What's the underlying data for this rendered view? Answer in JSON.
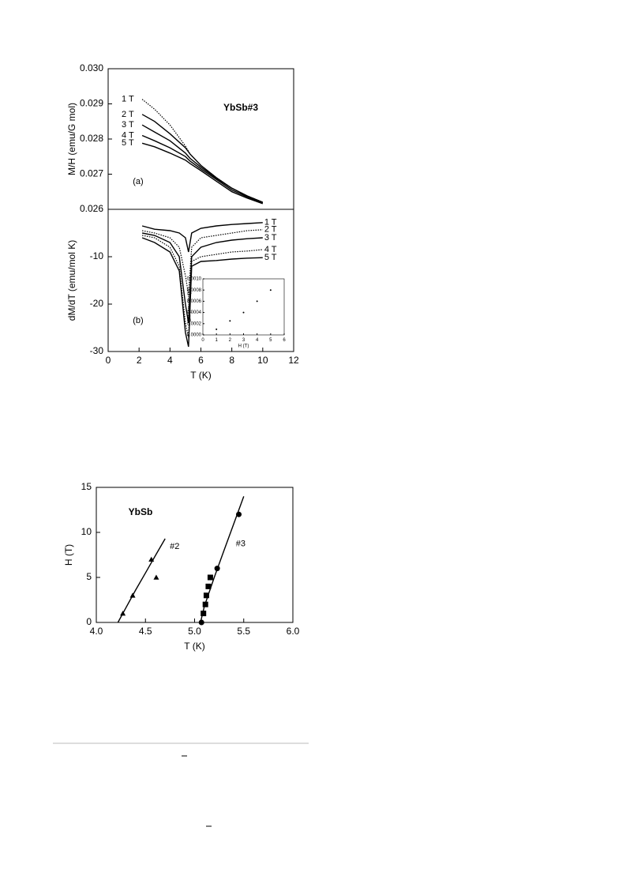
{
  "chart_data": [
    {
      "type": "line",
      "annotation": "YbSb#3",
      "panel_label": "(a)",
      "y_label": "M/H (emu/G mol)",
      "xlim": [
        0,
        12
      ],
      "ylim": [
        0.026,
        0.03
      ],
      "yticks": [
        0.026,
        0.027,
        0.028,
        0.029,
        {
          "value": 0.03,
          "label": "0.030"
        }
      ],
      "series": [
        {
          "name": "1 T",
          "color": "#000",
          "style": "dotted",
          "x": [
            2.2,
            3,
            4,
            5,
            5.3,
            6,
            7,
            8,
            9,
            10
          ],
          "values": [
            0.02913,
            0.02885,
            0.0284,
            0.0278,
            0.02757,
            0.02725,
            0.0269,
            0.0266,
            0.02638,
            0.0262
          ]
        },
        {
          "name": "2 T",
          "color": "#000",
          "style": "solid",
          "x": [
            2.2,
            3,
            4,
            5,
            5.3,
            6,
            7,
            8,
            9,
            10
          ],
          "values": [
            0.0287,
            0.0285,
            0.02815,
            0.02775,
            0.02757,
            0.02725,
            0.0269,
            0.0266,
            0.02638,
            0.0262
          ]
        },
        {
          "name": "3 T",
          "color": "#000",
          "style": "solid",
          "x": [
            2.2,
            3,
            4,
            5,
            5.3,
            6,
            7,
            8,
            9,
            10
          ],
          "values": [
            0.0284,
            0.0282,
            0.02795,
            0.0276,
            0.02745,
            0.0272,
            0.02688,
            0.0266,
            0.02638,
            0.0262
          ]
        },
        {
          "name": "4 T",
          "color": "#000",
          "style": "solid",
          "x": [
            2.2,
            3,
            4,
            5,
            5.3,
            6,
            7,
            8,
            9,
            10
          ],
          "values": [
            0.0281,
            0.02795,
            0.02775,
            0.0275,
            0.02737,
            0.02715,
            0.02685,
            0.02655,
            0.02635,
            0.02618
          ]
        },
        {
          "name": "5 T",
          "color": "#000",
          "style": "solid",
          "x": [
            2.2,
            3,
            4,
            5,
            5.3,
            6,
            7,
            8,
            9,
            10
          ],
          "values": [
            0.02788,
            0.02778,
            0.0276,
            0.0274,
            0.0273,
            0.0271,
            0.0268,
            0.0265,
            0.02632,
            0.02616
          ]
        }
      ]
    },
    {
      "type": "line",
      "panel_label": "(b)",
      "y_label": "dM/dT (emu/mol K)",
      "x_label": "T (K)",
      "xlim": [
        0,
        12
      ],
      "ylim": [
        -30,
        0
      ],
      "xticks": [
        0,
        2,
        4,
        6,
        8,
        10,
        12
      ],
      "yticks": [
        -30,
        -20,
        -10
      ],
      "series": [
        {
          "name": "1 T",
          "color": "#000",
          "style": "solid",
          "x": [
            2.2,
            3,
            4,
            4.6,
            5,
            5.2,
            5.4,
            6,
            7,
            8,
            9,
            10
          ],
          "values": [
            -3.5,
            -4.2,
            -4.5,
            -5,
            -6,
            -9,
            -5,
            -4,
            -3.5,
            -3.2,
            -3,
            -2.8
          ]
        },
        {
          "name": "2 T",
          "color": "#000",
          "style": "dotted",
          "x": [
            2.2,
            3,
            4,
            4.6,
            5,
            5.2,
            5.4,
            6,
            7,
            8,
            9,
            10
          ],
          "values": [
            -4.5,
            -5,
            -6,
            -8,
            -14,
            -18,
            -8,
            -6,
            -5.5,
            -5,
            -4.5,
            -4.3
          ]
        },
        {
          "name": "3 T",
          "color": "#000",
          "style": "solid",
          "x": [
            2.2,
            3,
            4,
            4.6,
            5,
            5.2,
            5.4,
            6,
            7,
            8,
            9,
            10
          ],
          "values": [
            -5,
            -5.5,
            -7,
            -10,
            -20,
            -24,
            -10,
            -8,
            -7,
            -6.5,
            -6.2,
            -6
          ]
        },
        {
          "name": "4 T",
          "color": "#000",
          "style": "dotted",
          "x": [
            2.2,
            3,
            4,
            4.6,
            5,
            5.2,
            5.4,
            6,
            7,
            8,
            9,
            10
          ],
          "values": [
            -5.5,
            -6,
            -8,
            -12,
            -24,
            -27,
            -11,
            -10,
            -9.5,
            -9,
            -8.8,
            -8.5
          ]
        },
        {
          "name": "5 T",
          "color": "#000",
          "style": "solid",
          "x": [
            2.2,
            3,
            4,
            4.6,
            5,
            5.2,
            5.4,
            6,
            7,
            8,
            9,
            10
          ],
          "values": [
            -6,
            -7,
            -9,
            -13,
            -26,
            -29,
            -12,
            -11,
            -10.8,
            -10.5,
            -10.3,
            -10.2
          ]
        }
      ]
    },
    {
      "type": "scatter",
      "y_label": "ΔM (emu/mol)",
      "x_label": "H (T)",
      "xlim": [
        0,
        6
      ],
      "ylim": [
        0,
        0.001
      ],
      "xticks": [
        0,
        1,
        2,
        3,
        4,
        5,
        6
      ],
      "yticks": [
        {
          "value": 0,
          "label": "0.0000"
        },
        {
          "value": 0.0002,
          "label": "0.0002"
        },
        {
          "value": 0.0004,
          "label": "0.0004"
        },
        {
          "value": 0.0006,
          "label": "0.0006"
        },
        {
          "value": 0.0008,
          "label": "0.0008"
        },
        {
          "value": 0.001,
          "label": "0.0010"
        }
      ],
      "series": [
        {
          "color": "#000",
          "style": "points",
          "marker": "circle",
          "x": [
            1,
            2,
            3,
            4,
            5
          ],
          "values": [
            0.0001,
            0.00025,
            0.0004,
            0.0006,
            0.0008
          ]
        }
      ]
    },
    {
      "type": "scatter",
      "annotation": "YbSb",
      "y_label": "H (T)",
      "x_label": "T (K)",
      "xlim": [
        4.0,
        6.0
      ],
      "ylim": [
        0,
        15
      ],
      "xticks": [
        {
          "value": 4,
          "label": "4.0"
        },
        4.5,
        {
          "value": 5,
          "label": "5.0"
        },
        5.5,
        {
          "value": 6,
          "label": "6.0"
        }
      ],
      "yticks": [
        0,
        5,
        10,
        15
      ],
      "series": [
        {
          "name": "#2",
          "color": "#000",
          "style": "solid",
          "x": [
            4.22,
            4.3,
            4.4,
            4.5,
            4.6,
            4.7
          ],
          "values": [
            0,
            1.6,
            3.6,
            5.5,
            7.4,
            9.3
          ]
        },
        {
          "name": "#3",
          "color": "#000",
          "style": "solid",
          "x": [
            5.06,
            5.1,
            5.2,
            5.3,
            5.4,
            5.5
          ],
          "values": [
            0,
            1.8,
            5,
            8,
            11,
            14
          ]
        },
        {
          "color": "#000",
          "style": "points",
          "marker": "triangle",
          "x": [
            4.27,
            4.37,
            4.56,
            4.61
          ],
          "values": [
            1,
            3,
            7,
            5
          ]
        },
        {
          "color": "#000",
          "style": "points",
          "marker": "square",
          "x": [
            5.09,
            5.11,
            5.12,
            5.14,
            5.16
          ],
          "values": [
            1,
            2,
            3,
            4,
            5
          ]
        },
        {
          "color": "#000",
          "style": "points",
          "marker": "circle",
          "x": [
            5.07,
            5.23,
            5.45
          ],
          "values": [
            0,
            6,
            12
          ]
        }
      ]
    }
  ]
}
